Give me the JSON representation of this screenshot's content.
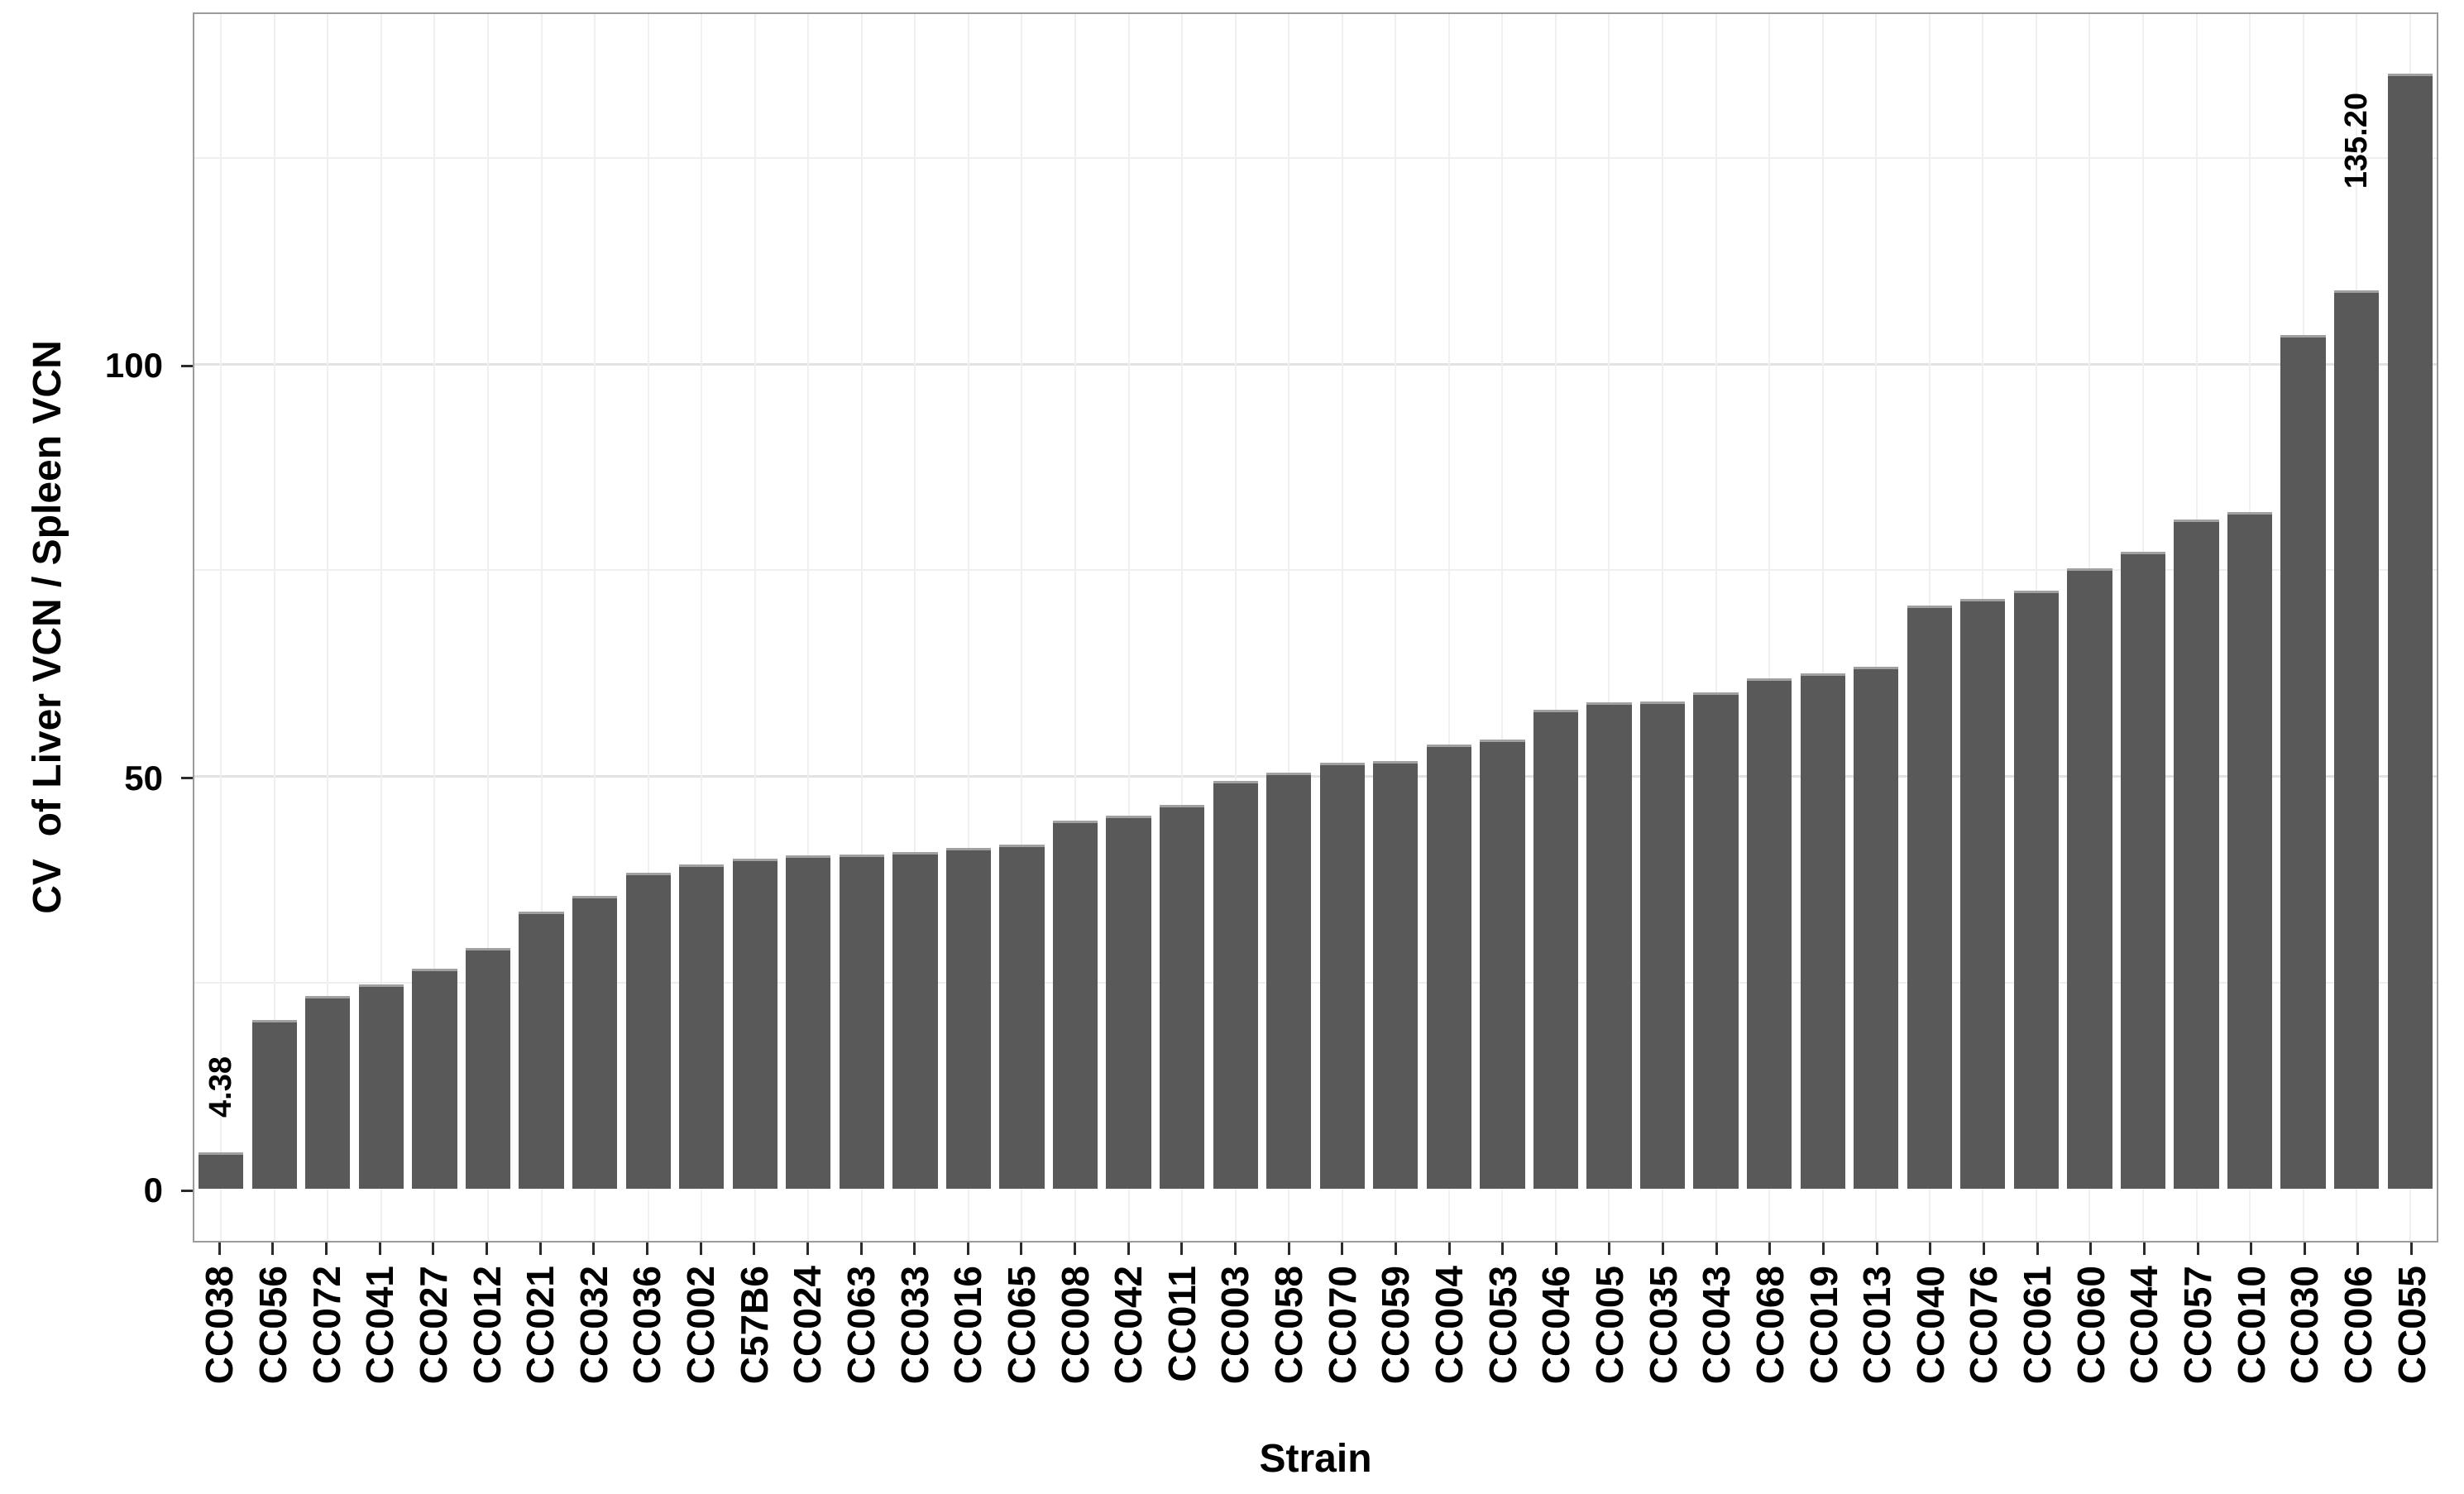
{
  "figure": {
    "background_color": "#ffffff",
    "bar_color": "#595959",
    "bar_top_edge_color": "#a0a0a0",
    "grid_major_color": "#e2e2e2",
    "grid_minor_color": "#efefef",
    "panel_border_color": "#9b9b9b",
    "tick_color": "#2b2b2b",
    "text_color": "#000000"
  },
  "chart_data": {
    "type": "bar",
    "title": "",
    "xlabel": "Strain",
    "ylabel": "CV  of Liver VCN / Spleen VCN",
    "ylim": [
      -6.3,
      142.8
    ],
    "yticks": [
      0,
      50,
      100
    ],
    "grid_minor": [
      25,
      75,
      125
    ],
    "grid": "on",
    "legend": "none",
    "categories": [
      "CC038",
      "CC056",
      "CC072",
      "CC041",
      "CC027",
      "CC012",
      "CC021",
      "CC032",
      "CC036",
      "CC002",
      "C57B6",
      "CC024",
      "CC063",
      "CC033",
      "CC016",
      "CC065",
      "CC008",
      "CC042",
      "CC011",
      "CC003",
      "CC058",
      "CC070",
      "CC059",
      "CC004",
      "CC053",
      "CC046",
      "CC005",
      "CC035",
      "CC043",
      "CC068",
      "CC019",
      "CC013",
      "CC040",
      "CC076",
      "CC061",
      "CC060",
      "CC044",
      "CC057",
      "CC010",
      "CC030",
      "CC006",
      "CC055"
    ],
    "values": [
      4.38,
      20.5,
      23.4,
      24.8,
      26.7,
      29.2,
      33.6,
      35.5,
      38.3,
      39.3,
      40.0,
      40.4,
      40.5,
      40.8,
      41.3,
      41.7,
      44.6,
      45.2,
      46.5,
      49.5,
      50.5,
      51.7,
      51.9,
      53.9,
      54.5,
      58.1,
      59.0,
      59.1,
      60.2,
      61.9,
      62.5,
      63.3,
      70.7,
      71.5,
      72.5,
      75.2,
      77.2,
      81.1,
      82.0,
      103.5,
      108.9,
      135.2
    ],
    "annotations": [
      {
        "index": 0,
        "category": "CC038",
        "text": "4.38"
      },
      {
        "index": 41,
        "category": "CC055",
        "text": "135.20"
      }
    ]
  }
}
